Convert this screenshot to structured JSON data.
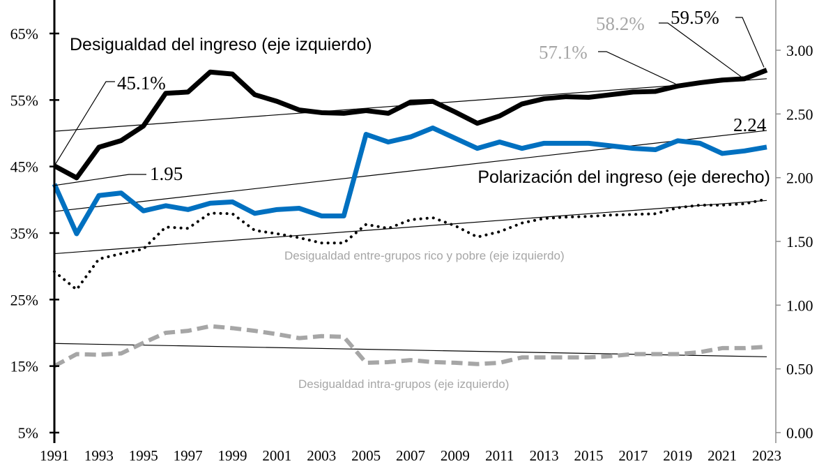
{
  "chart_data": {
    "type": "line",
    "x": [
      1991,
      1992,
      1993,
      1994,
      1995,
      1996,
      1997,
      1998,
      1999,
      2000,
      2001,
      2002,
      2003,
      2004,
      2005,
      2006,
      2007,
      2008,
      2009,
      2010,
      2011,
      2012,
      2013,
      2014,
      2015,
      2016,
      2017,
      2018,
      2019,
      2020,
      2021,
      2022,
      2023
    ],
    "x_tick_labels": [
      "1991",
      "1993",
      "1995",
      "1997",
      "1999",
      "2001",
      "2003",
      "2005",
      "2007",
      "2009",
      "2011",
      "2013",
      "2015",
      "2017",
      "2019",
      "2021",
      "2023"
    ],
    "left_axis": {
      "ylim": [
        5,
        65
      ],
      "ticks": [
        "5%",
        "15%",
        "25%",
        "35%",
        "45%",
        "55%",
        "65%"
      ]
    },
    "right_axis": {
      "ylim": [
        0,
        3
      ],
      "ticks": [
        "0.00",
        "0.50",
        "1.00",
        "1.50",
        "2.00",
        "2.50",
        "3.00"
      ]
    },
    "grid": false,
    "series": [
      {
        "name": "Desigualdad del ingreso (eje izquierdo)",
        "axis": "left",
        "color": "#000000",
        "style": "solid-thick",
        "values": [
          45.1,
          43.3,
          47.9,
          48.9,
          51.1,
          56.0,
          56.2,
          59.2,
          58.9,
          55.8,
          54.8,
          53.5,
          53.1,
          53.0,
          53.4,
          53.0,
          54.7,
          54.8,
          53.2,
          51.5,
          52.6,
          54.4,
          55.2,
          55.5,
          55.4,
          55.8,
          56.2,
          56.3,
          57.1,
          57.6,
          58.0,
          58.2,
          59.5
        ],
        "trend": [
          50.3,
          58.2
        ]
      },
      {
        "name": "Polarización del ingreso (eje derecho)",
        "axis": "right",
        "color": "#0070c0",
        "style": "solid-thick",
        "values": [
          1.95,
          1.56,
          1.86,
          1.88,
          1.74,
          1.78,
          1.75,
          1.8,
          1.81,
          1.72,
          1.75,
          1.76,
          1.7,
          1.7,
          2.34,
          2.28,
          2.32,
          2.39,
          2.31,
          2.23,
          2.28,
          2.23,
          2.27,
          2.27,
          2.27,
          2.25,
          2.23,
          2.22,
          2.29,
          2.27,
          2.19,
          2.21,
          2.24
        ],
        "trend": [
          1.735,
          2.37
        ]
      },
      {
        "name": "Desigualdad entre-grupos rico y pobre (eje izquierdo)",
        "axis": "left",
        "color": "#000000",
        "style": "dotted",
        "values": [
          29.2,
          26.5,
          31.1,
          31.9,
          32.6,
          35.9,
          35.7,
          38.0,
          37.9,
          35.4,
          34.9,
          34.3,
          33.5,
          33.5,
          36.3,
          35.7,
          37.0,
          37.3,
          36.1,
          34.4,
          35.2,
          36.5,
          37.2,
          37.4,
          37.5,
          37.7,
          37.8,
          37.9,
          38.8,
          39.2,
          39.2,
          39.4,
          40.1
        ],
        "trend": [
          31.9,
          39.9
        ]
      },
      {
        "name": "Desigualdad intra-grupos (eje izquierdo)",
        "axis": "left",
        "color": "#a6a6a6",
        "style": "dashed",
        "values": [
          15.0,
          16.8,
          16.7,
          16.9,
          18.5,
          20.0,
          20.3,
          21.0,
          20.7,
          20.3,
          19.8,
          19.2,
          19.5,
          19.4,
          15.5,
          15.6,
          15.9,
          15.6,
          15.5,
          15.3,
          15.5,
          16.3,
          16.3,
          16.3,
          16.3,
          16.5,
          16.8,
          16.8,
          16.8,
          17.1,
          17.7,
          17.7,
          17.9
        ],
        "trend": [
          18.4,
          16.4
        ]
      }
    ],
    "annotations": {
      "ineq_1991": "45.1%",
      "pol_1991": "1.95",
      "ineq_2019": "57.1%",
      "ineq_2022": "58.2%",
      "ineq_2023": "59.5%",
      "pol_2023": "2.24"
    },
    "annotation_colors": {
      "dark": "#000000",
      "grey": "#a6a6a6"
    }
  }
}
